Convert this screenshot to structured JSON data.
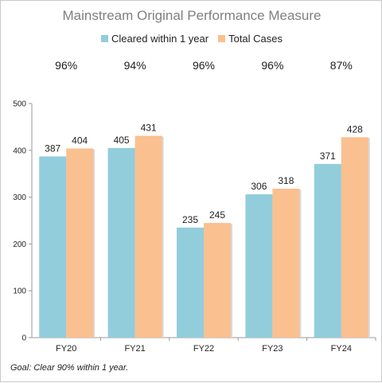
{
  "chart_data": {
    "type": "bar",
    "title": "Mainstream Original Performance Measure",
    "categories": [
      "FY20",
      "FY21",
      "FY22",
      "FY23",
      "FY24"
    ],
    "series": [
      {
        "name": "Cleared within 1 year",
        "values": [
          387,
          405,
          235,
          306,
          371
        ],
        "color": "#92cddc"
      },
      {
        "name": "Total Cases",
        "values": [
          404,
          431,
          245,
          318,
          428
        ],
        "color": "#fac090"
      }
    ],
    "percent_labels": [
      "96%",
      "94%",
      "96%",
      "96%",
      "87%"
    ],
    "ylim": [
      0,
      500
    ],
    "yticks": [
      0,
      100,
      200,
      300,
      400,
      500
    ],
    "xlabel": "",
    "ylabel": "",
    "grid": false,
    "legend": "top-center",
    "footnote": "Goal:  Clear 90% within 1 year."
  }
}
